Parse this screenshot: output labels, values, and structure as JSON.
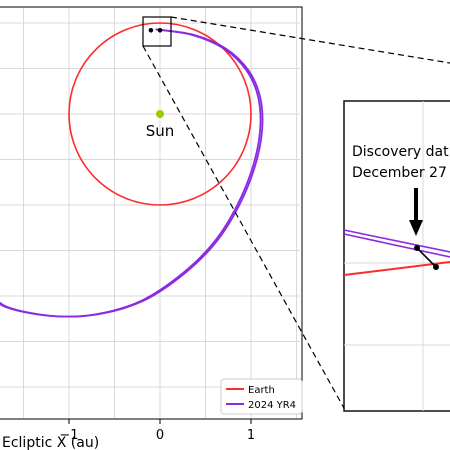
{
  "chart_data": [
    {
      "type": "line",
      "panel": "main",
      "xlabel": "Ecliptic X (au)",
      "ylabel": "",
      "xlim": [
        -1.75,
        1.55
      ],
      "ylim": [
        -2.6,
        1.2
      ],
      "xticks": [
        -1,
        0,
        1
      ],
      "xtick_labels": [
        "−1",
        "0",
        "1"
      ],
      "grid": true,
      "legend_placement": "bottom-right",
      "annotations": [
        {
          "text": "Sun",
          "x": 0,
          "y": 0
        }
      ],
      "series": [
        {
          "name": "Earth",
          "color": "#ff2a2a",
          "shape": "circle",
          "center": [
            0,
            0
          ],
          "radius": 1.0
        },
        {
          "name": "2024 YR4",
          "color": "#8a2be2",
          "shape": "orbit",
          "points": [
            [
              -0.05,
              0.93
            ],
            [
              0.35,
              0.87
            ],
            [
              0.7,
              0.72
            ],
            [
              0.95,
              0.48
            ],
            [
              1.08,
              0.18
            ],
            [
              1.1,
              -0.18
            ],
            [
              1.02,
              -0.58
            ],
            [
              0.85,
              -1.0
            ],
            [
              0.6,
              -1.4
            ],
            [
              0.25,
              -1.75
            ],
            [
              -0.2,
              -2.05
            ],
            [
              -0.7,
              -2.2
            ],
            [
              -1.2,
              -2.22
            ],
            [
              -1.7,
              -2.12
            ],
            [
              -1.9,
              -1.95
            ]
          ]
        }
      ],
      "markers": [
        {
          "label": "Sun",
          "x": 0,
          "y": 0,
          "color": "#99cc00"
        },
        {
          "x": -0.1,
          "y": 0.92,
          "color": "#000000"
        },
        {
          "x": 0.0,
          "y": 0.92,
          "color": "#000000"
        }
      ]
    },
    {
      "type": "line",
      "panel": "zoom-inset",
      "annotations": [
        {
          "text": "Discovery dat",
          "line": 1
        },
        {
          "text": "December 27",
          "line": 2
        }
      ],
      "grid": true,
      "series": [
        {
          "name": "Earth",
          "color": "#ff2a2a"
        },
        {
          "name": "2024 YR4",
          "color": "#8a2be2"
        }
      ]
    }
  ],
  "labels": {
    "x_axis_title": "Ecliptic X (au)",
    "sun": "Sun",
    "legend_earth": "Earth",
    "legend_yr4": "2024 YR4",
    "inset_line1": "Discovery dat",
    "inset_line2": "December 27",
    "tick_m1": "−1",
    "tick_0": "0",
    "tick_1": "1"
  },
  "colors": {
    "earth": "#ff2a2a",
    "asteroid": "#8a2be2",
    "sun": "#99cc00",
    "grid": "#d9d9d9",
    "axis": "#000000"
  }
}
